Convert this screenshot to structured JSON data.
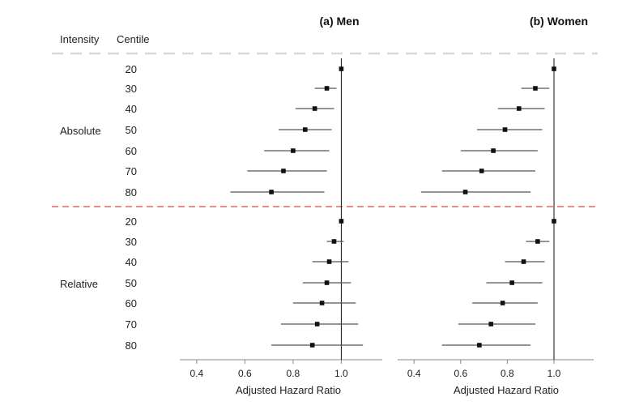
{
  "header": {
    "intensity_label": "Intensity",
    "centile_label": "Centile"
  },
  "groups": [
    "Absolute",
    "Relative"
  ],
  "chart_data": [
    {
      "type": "forest",
      "title": "(a) Men",
      "xlabel": "Adjusted Hazard Ratio",
      "xlim": [
        0.33,
        1.17
      ],
      "xticks": [
        "0.4",
        "0.6",
        "0.8",
        "1.0"
      ],
      "reference_line": 1.0,
      "rows": [
        {
          "group": "Absolute",
          "centile": "20",
          "hr": 1.0,
          "lo": 1.0,
          "hi": 1.0
        },
        {
          "group": "Absolute",
          "centile": "30",
          "hr": 0.94,
          "lo": 0.89,
          "hi": 0.98
        },
        {
          "group": "Absolute",
          "centile": "40",
          "hr": 0.89,
          "lo": 0.81,
          "hi": 0.97
        },
        {
          "group": "Absolute",
          "centile": "50",
          "hr": 0.85,
          "lo": 0.74,
          "hi": 0.96
        },
        {
          "group": "Absolute",
          "centile": "60",
          "hr": 0.8,
          "lo": 0.68,
          "hi": 0.95
        },
        {
          "group": "Absolute",
          "centile": "70",
          "hr": 0.76,
          "lo": 0.61,
          "hi": 0.94
        },
        {
          "group": "Absolute",
          "centile": "80",
          "hr": 0.71,
          "lo": 0.54,
          "hi": 0.93
        },
        {
          "group": "Relative",
          "centile": "20",
          "hr": 1.0,
          "lo": 1.0,
          "hi": 1.0
        },
        {
          "group": "Relative",
          "centile": "30",
          "hr": 0.97,
          "lo": 0.94,
          "hi": 1.01
        },
        {
          "group": "Relative",
          "centile": "40",
          "hr": 0.95,
          "lo": 0.88,
          "hi": 1.03
        },
        {
          "group": "Relative",
          "centile": "50",
          "hr": 0.94,
          "lo": 0.84,
          "hi": 1.04
        },
        {
          "group": "Relative",
          "centile": "60",
          "hr": 0.92,
          "lo": 0.8,
          "hi": 1.06
        },
        {
          "group": "Relative",
          "centile": "70",
          "hr": 0.9,
          "lo": 0.75,
          "hi": 1.07
        },
        {
          "group": "Relative",
          "centile": "80",
          "hr": 0.88,
          "lo": 0.71,
          "hi": 1.09
        }
      ]
    },
    {
      "type": "forest",
      "title": "(b) Women",
      "xlabel": "Adjusted Hazard Ratio",
      "xlim": [
        0.33,
        1.17
      ],
      "xticks": [
        "0.4",
        "0.6",
        "0.8",
        "1.0"
      ],
      "reference_line": 1.0,
      "rows": [
        {
          "group": "Absolute",
          "centile": "20",
          "hr": 1.0,
          "lo": 1.0,
          "hi": 1.0
        },
        {
          "group": "Absolute",
          "centile": "30",
          "hr": 0.92,
          "lo": 0.86,
          "hi": 0.98
        },
        {
          "group": "Absolute",
          "centile": "40",
          "hr": 0.85,
          "lo": 0.76,
          "hi": 0.96
        },
        {
          "group": "Absolute",
          "centile": "50",
          "hr": 0.79,
          "lo": 0.67,
          "hi": 0.95
        },
        {
          "group": "Absolute",
          "centile": "60",
          "hr": 0.74,
          "lo": 0.6,
          "hi": 0.93
        },
        {
          "group": "Absolute",
          "centile": "70",
          "hr": 0.69,
          "lo": 0.52,
          "hi": 0.92
        },
        {
          "group": "Absolute",
          "centile": "80",
          "hr": 0.62,
          "lo": 0.43,
          "hi": 0.9
        },
        {
          "group": "Relative",
          "centile": "20",
          "hr": 1.0,
          "lo": 1.0,
          "hi": 1.0
        },
        {
          "group": "Relative",
          "centile": "30",
          "hr": 0.93,
          "lo": 0.88,
          "hi": 0.98
        },
        {
          "group": "Relative",
          "centile": "40",
          "hr": 0.87,
          "lo": 0.79,
          "hi": 0.96
        },
        {
          "group": "Relative",
          "centile": "50",
          "hr": 0.82,
          "lo": 0.71,
          "hi": 0.95
        },
        {
          "group": "Relative",
          "centile": "60",
          "hr": 0.78,
          "lo": 0.65,
          "hi": 0.93
        },
        {
          "group": "Relative",
          "centile": "70",
          "hr": 0.73,
          "lo": 0.59,
          "hi": 0.92
        },
        {
          "group": "Relative",
          "centile": "80",
          "hr": 0.68,
          "lo": 0.52,
          "hi": 0.9
        }
      ]
    }
  ],
  "colors": {
    "ink": "#111111",
    "separator_top": "#d8d8d8",
    "separator_mid": "#e06666",
    "axis": "#888888"
  }
}
